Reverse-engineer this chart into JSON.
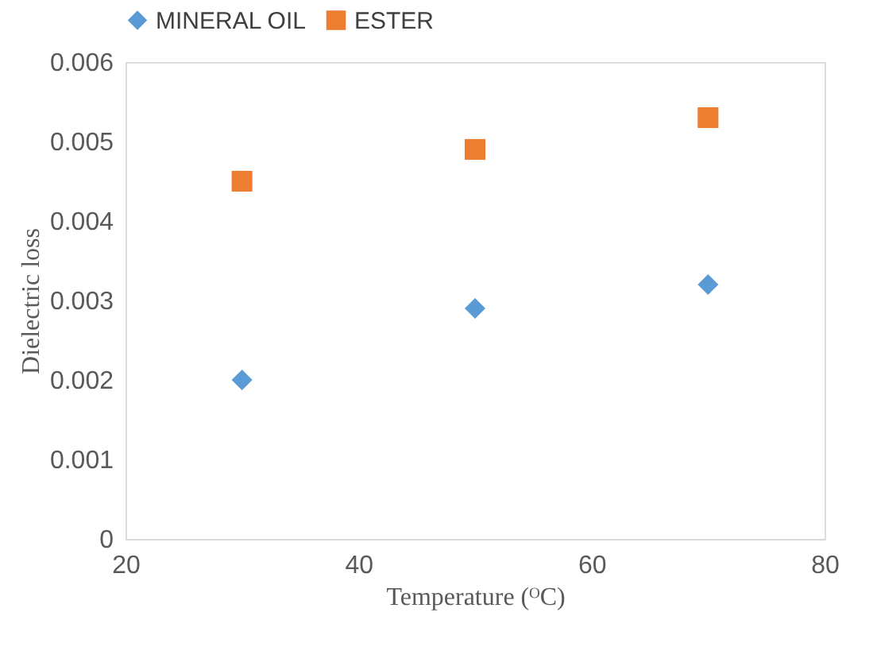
{
  "chart_data": {
    "type": "scatter",
    "xlabel": "Temperature (ᴼC)",
    "ylabel": "Dielectric loss",
    "x": [
      30,
      50,
      70
    ],
    "series": [
      {
        "name": "MINERAL OIL",
        "color": "#5b9bd5",
        "marker": "diamond",
        "values": [
          0.002,
          0.0029,
          0.0032
        ]
      },
      {
        "name": "ESTER",
        "color": "#ed7d31",
        "marker": "square",
        "values": [
          0.0045,
          0.0049,
          0.0053
        ]
      }
    ],
    "xlim": [
      20,
      80
    ],
    "xticks": [
      20,
      40,
      60,
      80
    ],
    "ylim": [
      0,
      0.006
    ],
    "yticks": [
      0,
      0.001,
      0.002,
      0.003,
      0.004,
      0.005,
      0.006
    ],
    "grid": false,
    "legend": "top"
  }
}
